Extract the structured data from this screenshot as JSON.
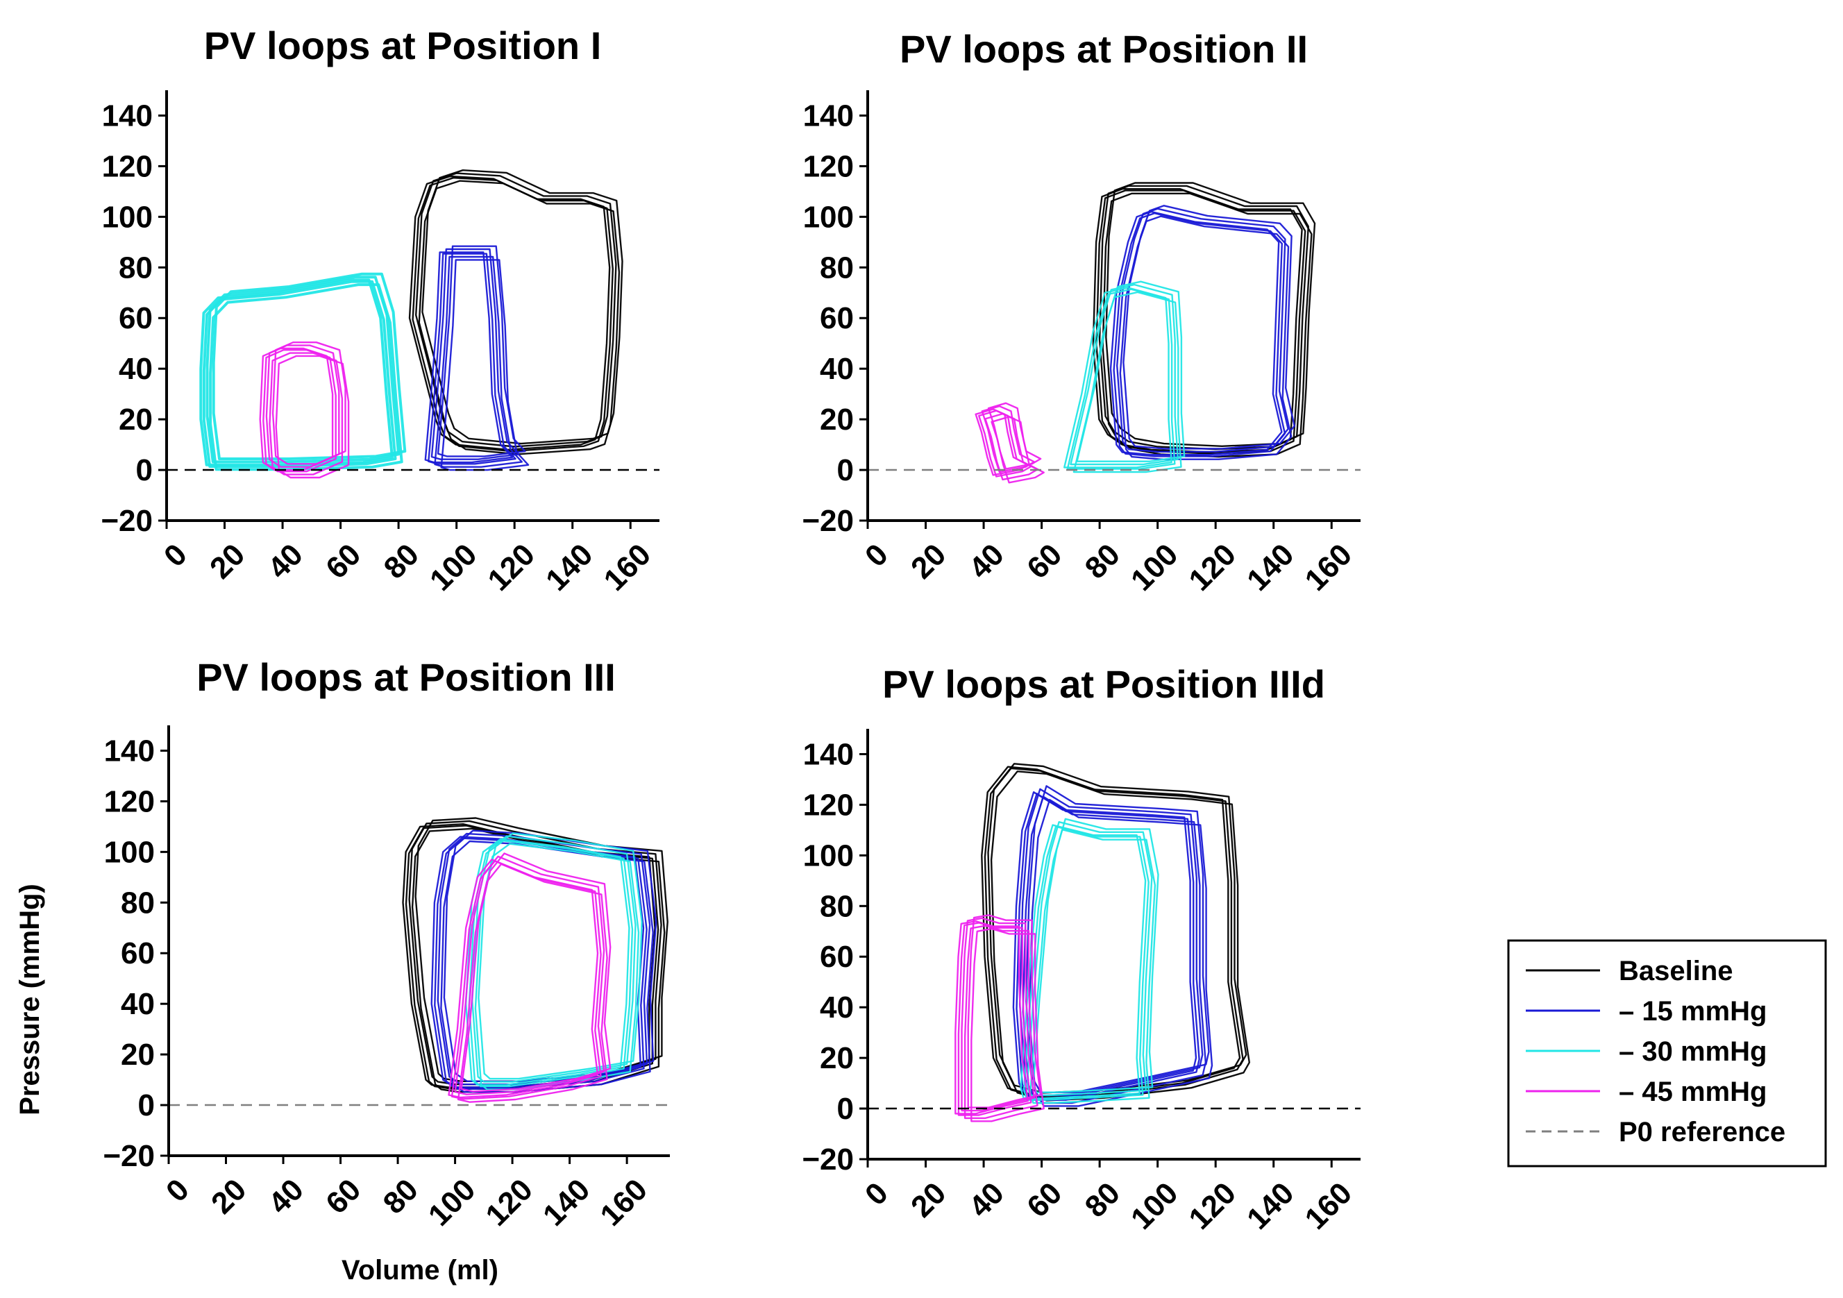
{
  "colors": {
    "Baseline": "#000000",
    "15": "#1a1ad6",
    "30": "#22e6e6",
    "45": "#ee22ee",
    "reference": "#7f7f7f"
  },
  "legend": {
    "placement": "right",
    "items": [
      {
        "label": "Baseline",
        "color": "#000000",
        "dashed": false
      },
      {
        "label": "– 15 mmHg",
        "color": "#1a1ad6",
        "dashed": false
      },
      {
        "label": "– 30 mmHg",
        "color": "#22e6e6",
        "dashed": false
      },
      {
        "label": "– 45 mmHg",
        "color": "#ee22ee",
        "dashed": false
      },
      {
        "label": "P0 reference",
        "color": "#7f7f7f",
        "dashed": true
      }
    ]
  },
  "labels": {
    "xlabel": "Volume (ml)",
    "ylabel": "Pressure (mmHg)"
  },
  "chart_data": [
    {
      "type": "line",
      "title": "PV loops at Position I",
      "xlim": [
        0,
        170
      ],
      "ylim": [
        -20,
        150
      ],
      "xticks": [
        0,
        20,
        40,
        60,
        80,
        100,
        120,
        140,
        160
      ],
      "yticks": [
        -20,
        0,
        20,
        40,
        60,
        80,
        100,
        120,
        140
      ],
      "reference_line": {
        "y": 0,
        "color": "#000000"
      },
      "loops": [
        {
          "series": "Baseline",
          "count": 5,
          "points": [
            [
              95,
              20
            ],
            [
              86,
              60
            ],
            [
              88,
              100
            ],
            [
              92,
              113
            ],
            [
              100,
              116
            ],
            [
              115,
              115
            ],
            [
              130,
              107
            ],
            [
              145,
              107
            ],
            [
              153,
              104
            ],
            [
              155,
              80
            ],
            [
              154,
              50
            ],
            [
              152,
              20
            ],
            [
              150,
              12
            ],
            [
              145,
              10
            ],
            [
              120,
              8
            ],
            [
              102,
              10
            ],
            [
              97,
              14
            ]
          ]
        },
        {
          "series": "– 15 mmHg",
          "count": 6,
          "points": [
            [
              92,
              4
            ],
            [
              94,
              30
            ],
            [
              96,
              60
            ],
            [
              97,
              86
            ],
            [
              112,
              86
            ],
            [
              114,
              60
            ],
            [
              115,
              30
            ],
            [
              118,
              10
            ],
            [
              122,
              5
            ],
            [
              108,
              3
            ],
            [
              95,
              3
            ]
          ]
        },
        {
          "series": "– 30 mmHg",
          "count": 5,
          "points": [
            [
              15,
              62
            ],
            [
              20,
              68
            ],
            [
              40,
              70
            ],
            [
              65,
              75
            ],
            [
              72,
              75
            ],
            [
              76,
              60
            ],
            [
              78,
              30
            ],
            [
              80,
              5
            ],
            [
              70,
              3
            ],
            [
              40,
              2
            ],
            [
              16,
              2
            ],
            [
              14,
              20
            ],
            [
              14,
              40
            ]
          ]
        },
        {
          "series": "– 45 mmHg",
          "count": 6,
          "points": [
            [
              36,
              45
            ],
            [
              42,
              48
            ],
            [
              50,
              48
            ],
            [
              58,
              45
            ],
            [
              60,
              30
            ],
            [
              60,
              5
            ],
            [
              50,
              0
            ],
            [
              40,
              0
            ],
            [
              36,
              3
            ],
            [
              35,
              20
            ]
          ]
        }
      ]
    },
    {
      "type": "line",
      "title": "PV loops at Position II",
      "xlim": [
        0,
        170
      ],
      "ylim": [
        -20,
        150
      ],
      "xticks": [
        0,
        20,
        40,
        60,
        80,
        100,
        120,
        140,
        160
      ],
      "yticks": [
        -20,
        0,
        20,
        40,
        60,
        80,
        100,
        120,
        140
      ],
      "reference_line": {
        "y": 0,
        "color": "#7f7f7f"
      },
      "loops": [
        {
          "series": "Baseline",
          "count": 5,
          "points": [
            [
              82,
              20
            ],
            [
              80,
              50
            ],
            [
              81,
              90
            ],
            [
              83,
              108
            ],
            [
              90,
              111
            ],
            [
              110,
              111
            ],
            [
              130,
              103
            ],
            [
              148,
              103
            ],
            [
              152,
              95
            ],
            [
              150,
              60
            ],
            [
              149,
              30
            ],
            [
              148,
              12
            ],
            [
              140,
              8
            ],
            [
              120,
              7
            ],
            [
              100,
              8
            ],
            [
              90,
              10
            ],
            [
              85,
              14
            ]
          ]
        },
        {
          "series": "– 15 mmHg",
          "count": 5,
          "points": [
            [
              88,
              10
            ],
            [
              86,
              40
            ],
            [
              88,
              70
            ],
            [
              92,
              90
            ],
            [
              95,
              100
            ],
            [
              100,
              102
            ],
            [
              115,
              98
            ],
            [
              140,
              95
            ],
            [
              144,
              90
            ],
            [
              143,
              60
            ],
            [
              142,
              30
            ],
            [
              145,
              15
            ],
            [
              140,
              8
            ],
            [
              120,
              6
            ],
            [
              100,
              6
            ],
            [
              90,
              7
            ]
          ]
        },
        {
          "series": "– 30 mmHg",
          "count": 5,
          "points": [
            [
              70,
              1
            ],
            [
              76,
              30
            ],
            [
              80,
              55
            ],
            [
              84,
              70
            ],
            [
              92,
              72
            ],
            [
              105,
              68
            ],
            [
              106,
              50
            ],
            [
              106,
              20
            ],
            [
              107,
              3
            ],
            [
              95,
              1
            ],
            [
              80,
              1
            ]
          ]
        },
        {
          "series": "– 45 mmHg",
          "count": 6,
          "points": [
            [
              40,
              22
            ],
            [
              46,
              24
            ],
            [
              50,
              22
            ],
            [
              51,
              15
            ],
            [
              53,
              5
            ],
            [
              58,
              2
            ],
            [
              55,
              0
            ],
            [
              46,
              -2
            ],
            [
              44,
              5
            ],
            [
              42,
              15
            ]
          ]
        }
      ]
    },
    {
      "type": "line",
      "title": "PV loops at Position III",
      "xlim": [
        0,
        175
      ],
      "ylim": [
        -20,
        150
      ],
      "xticks": [
        0,
        20,
        40,
        60,
        80,
        100,
        120,
        140,
        160
      ],
      "yticks": [
        -20,
        0,
        20,
        40,
        60,
        80,
        100,
        120,
        140
      ],
      "reference_line": {
        "y": 0,
        "color": "#7f7f7f"
      },
      "loops": [
        {
          "series": "Baseline",
          "count": 5,
          "points": [
            [
              92,
              10
            ],
            [
              87,
              40
            ],
            [
              84,
              80
            ],
            [
              85,
              100
            ],
            [
              90,
              110
            ],
            [
              105,
              111
            ],
            [
              120,
              107
            ],
            [
              150,
              100
            ],
            [
              170,
              98
            ],
            [
              172,
              70
            ],
            [
              170,
              40
            ],
            [
              170,
              17
            ],
            [
              150,
              10
            ],
            [
              120,
              7
            ],
            [
              100,
              7
            ],
            [
              94,
              8
            ]
          ]
        },
        {
          "series": "– 15 mmHg",
          "count": 5,
          "points": [
            [
              98,
              10
            ],
            [
              94,
              40
            ],
            [
              95,
              80
            ],
            [
              98,
              100
            ],
            [
              104,
              106
            ],
            [
              120,
              105
            ],
            [
              150,
              100
            ],
            [
              165,
              98
            ],
            [
              168,
              70
            ],
            [
              166,
              40
            ],
            [
              167,
              15
            ],
            [
              150,
              10
            ],
            [
              120,
              7
            ],
            [
              102,
              7
            ]
          ]
        },
        {
          "series": "– 30 mmHg",
          "count": 5,
          "points": [
            [
              108,
              10
            ],
            [
              106,
              40
            ],
            [
              108,
              80
            ],
            [
              112,
              100
            ],
            [
              118,
              105
            ],
            [
              140,
              102
            ],
            [
              160,
              98
            ],
            [
              163,
              70
            ],
            [
              162,
              40
            ],
            [
              160,
              15
            ],
            [
              145,
              12
            ],
            [
              120,
              8
            ],
            [
              110,
              8
            ]
          ]
        },
        {
          "series": "– 45 mmHg",
          "count": 5,
          "points": [
            [
              100,
              4
            ],
            [
              103,
              30
            ],
            [
              106,
              70
            ],
            [
              110,
              90
            ],
            [
              115,
              97
            ],
            [
              130,
              90
            ],
            [
              150,
              85
            ],
            [
              152,
              60
            ],
            [
              150,
              30
            ],
            [
              152,
              12
            ],
            [
              140,
              8
            ],
            [
              120,
              4
            ],
            [
              104,
              3
            ]
          ]
        }
      ]
    },
    {
      "type": "line",
      "title": "PV loops at Position IIId",
      "xlim": [
        0,
        170
      ],
      "ylim": [
        -20,
        150
      ],
      "xticks": [
        0,
        20,
        40,
        60,
        80,
        100,
        120,
        140,
        160
      ],
      "yticks": [
        -20,
        0,
        20,
        40,
        60,
        80,
        100,
        120,
        140
      ],
      "reference_line": {
        "y": 0,
        "color": "#000000"
      },
      "loops": [
        {
          "series": "Baseline",
          "count": 4,
          "points": [
            [
              45,
              20
            ],
            [
              42,
              60
            ],
            [
              41,
              100
            ],
            [
              43,
              125
            ],
            [
              50,
              135
            ],
            [
              60,
              134
            ],
            [
              80,
              126
            ],
            [
              110,
              124
            ],
            [
              124,
              122
            ],
            [
              126,
              90
            ],
            [
              126,
              50
            ],
            [
              130,
              20
            ],
            [
              128,
              16
            ],
            [
              110,
              10
            ],
            [
              80,
              6
            ],
            [
              60,
              5
            ],
            [
              50,
              8
            ]
          ]
        },
        {
          "series": "– 15 mmHg",
          "count": 6,
          "points": [
            [
              55,
              10
            ],
            [
              53,
              40
            ],
            [
              54,
              80
            ],
            [
              56,
              110
            ],
            [
              60,
              125
            ],
            [
              70,
              118
            ],
            [
              100,
              116
            ],
            [
              112,
              115
            ],
            [
              114,
              90
            ],
            [
              114,
              50
            ],
            [
              116,
              20
            ],
            [
              115,
              15
            ],
            [
              95,
              10
            ],
            [
              70,
              4
            ],
            [
              58,
              4
            ]
          ]
        },
        {
          "series": "– 30 mmHg",
          "count": 5,
          "points": [
            [
              55,
              8
            ],
            [
              57,
              40
            ],
            [
              60,
              80
            ],
            [
              63,
              100
            ],
            [
              66,
              112
            ],
            [
              80,
              108
            ],
            [
              95,
              108
            ],
            [
              98,
              90
            ],
            [
              96,
              50
            ],
            [
              95,
              20
            ],
            [
              96,
              6
            ],
            [
              80,
              5
            ],
            [
              62,
              4
            ],
            [
              56,
              4
            ]
          ]
        },
        {
          "series": "– 45 mmHg",
          "count": 6,
          "points": [
            [
              33,
              -2
            ],
            [
              33,
              30
            ],
            [
              34,
              60
            ],
            [
              35,
              73
            ],
            [
              40,
              74
            ],
            [
              46,
              72
            ],
            [
              55,
              72
            ],
            [
              55,
              50
            ],
            [
              56,
              20
            ],
            [
              58,
              3
            ],
            [
              50,
              1
            ],
            [
              40,
              -2
            ]
          ]
        }
      ]
    }
  ]
}
